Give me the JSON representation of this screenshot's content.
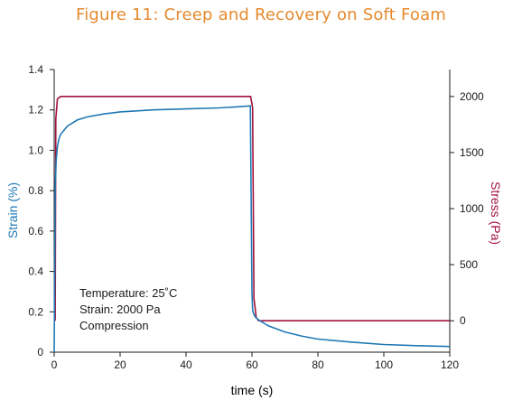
{
  "colors": {
    "title": "#E58A2E",
    "strain": "#1F78B4",
    "stress": "#A3123C",
    "axis": "#1a1a1a"
  },
  "chart_data": {
    "type": "line",
    "title": "Figure 11: Creep and Recovery on Soft Foam",
    "xlabel": "time (s)",
    "ylabel": "Strain (%)",
    "y2label": "Stress (Pa)",
    "xlim": [
      0,
      120
    ],
    "ylim": [
      0,
      1.4
    ],
    "y2lim": [
      -280,
      2240
    ],
    "x_ticks": [
      "0",
      "20",
      "40",
      "60",
      "80",
      "100",
      "120"
    ],
    "y_ticks": [
      "0",
      "0.2",
      "0.4",
      "0.6",
      "0.8",
      "1.0",
      "1.2",
      "1.4"
    ],
    "y2_ticks": [
      "0",
      "500",
      "1000",
      "1500",
      "2000"
    ],
    "grid": false,
    "annotations": [
      "Temperature: 25˚C",
      "Strain: 2000 Pa",
      "Compression"
    ],
    "series": [
      {
        "axis": "left",
        "x": [
          0,
          0.3,
          0.6,
          1,
          1.5,
          2,
          3,
          4,
          5,
          7,
          10,
          15,
          20,
          25,
          30,
          40,
          50,
          55,
          59.5,
          60,
          60.2,
          60.5,
          61,
          62,
          63,
          65,
          70,
          75,
          80,
          90,
          100,
          110,
          120
        ],
        "y": [
          0,
          0.8,
          0.95,
          1.02,
          1.06,
          1.08,
          1.1,
          1.12,
          1.13,
          1.15,
          1.165,
          1.18,
          1.19,
          1.195,
          1.2,
          1.205,
          1.21,
          1.215,
          1.22,
          0.3,
          0.21,
          0.19,
          0.175,
          0.16,
          0.15,
          0.13,
          0.1,
          0.08,
          0.065,
          0.05,
          0.038,
          0.032,
          0.028
        ]
      },
      {
        "axis": "right",
        "x": [
          0.3,
          0.5,
          1,
          2,
          59.6,
          60.2,
          60.6,
          61.3,
          62,
          120
        ],
        "y": [
          0,
          1800,
          1980,
          2000,
          2000,
          1900,
          200,
          30,
          0,
          0
        ]
      }
    ]
  }
}
